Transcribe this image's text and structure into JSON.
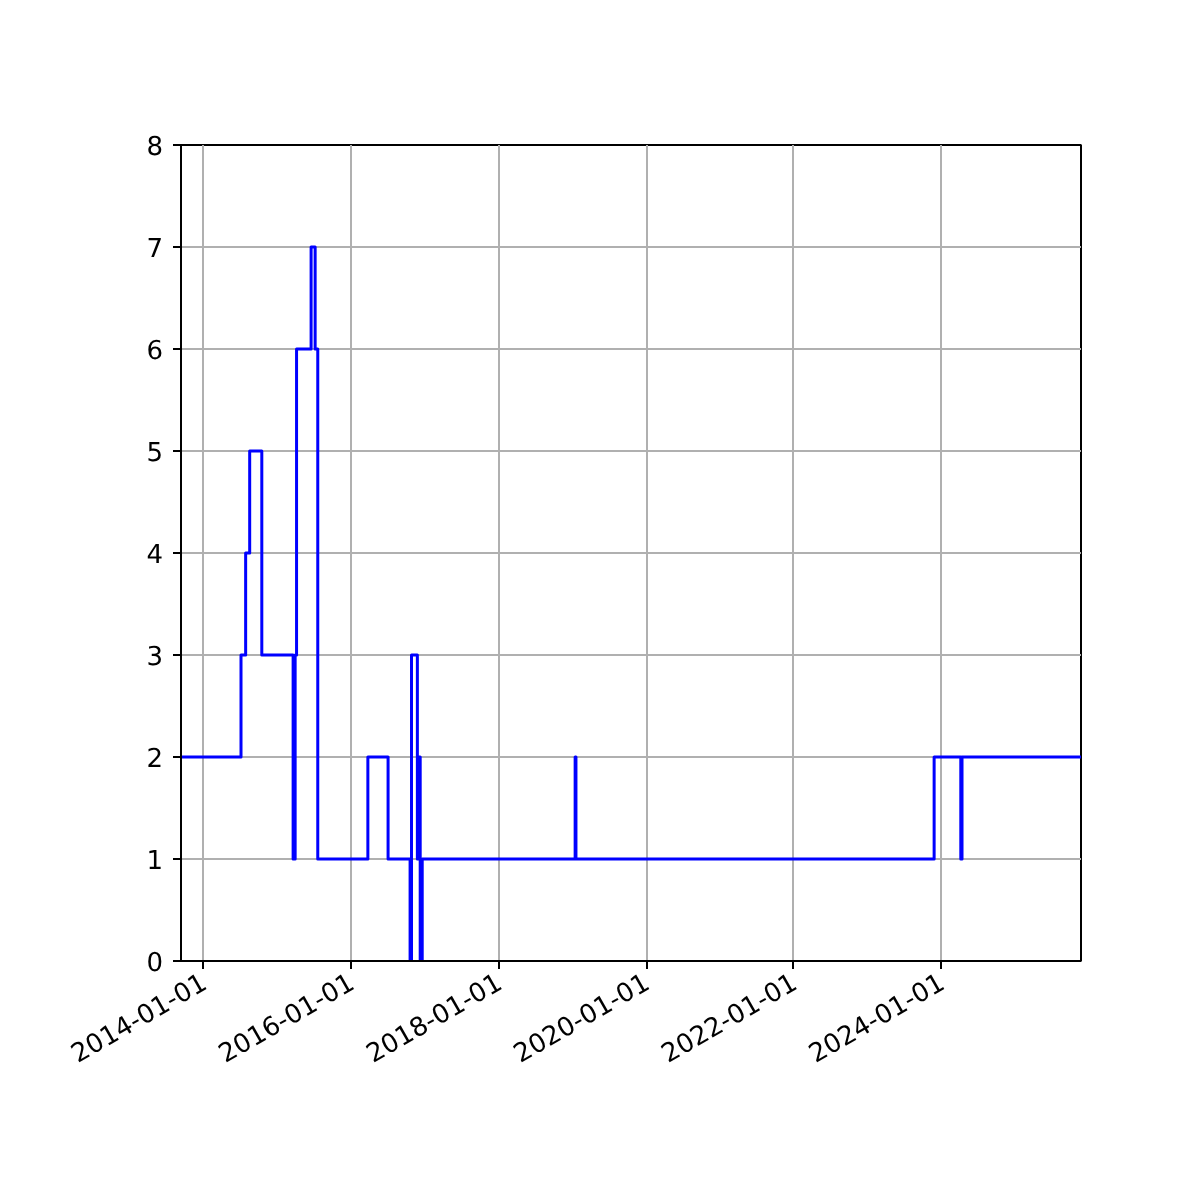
{
  "chart_data": {
    "type": "step",
    "x": [
      "2013-09-11",
      "2014-07-05",
      "2014-07-28",
      "2014-08-17",
      "2014-10-16",
      "2015-03-20",
      "2015-03-30",
      "2015-04-06",
      "2015-06-17",
      "2015-07-07",
      "2015-07-20",
      "2016-03-24",
      "2016-07-02",
      "2016-10-19",
      "2016-10-26",
      "2016-11-24",
      "2016-11-28",
      "2016-12-08",
      "2016-12-18",
      "2019-01-14",
      "2019-01-18",
      "2023-11-26",
      "2024-04-06",
      "2024-04-12",
      "2025-11-22"
    ],
    "series": [
      {
        "color": "#0000ff",
        "values": [
          2,
          3,
          4,
          5,
          3,
          1,
          3,
          6,
          7,
          6,
          1,
          2,
          1,
          0,
          3,
          1,
          2,
          0,
          1,
          2,
          1,
          2,
          1,
          2,
          2
        ]
      }
    ],
    "xlim": [
      "2013-09-11",
      "2025-11-22"
    ],
    "xticks": [
      "2014-01-01",
      "2016-01-01",
      "2018-01-01",
      "2020-01-01",
      "2022-01-01",
      "2024-01-01"
    ],
    "ylim": [
      0,
      8
    ],
    "yticks": [
      0,
      1,
      2,
      3,
      4,
      5,
      6,
      7,
      8
    ],
    "grid": true
  }
}
